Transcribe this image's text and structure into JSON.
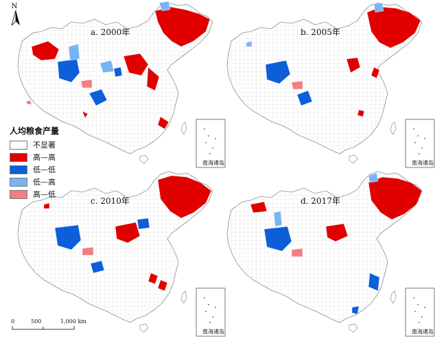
{
  "north_label": "N",
  "legend": {
    "title": "人均粮食产量",
    "items": [
      {
        "label": "不显著",
        "color": "#ffffff"
      },
      {
        "label": "高—高",
        "color": "#e00000"
      },
      {
        "label": "低—低",
        "color": "#0c5fd8"
      },
      {
        "label": "低—高",
        "color": "#78b4f4"
      },
      {
        "label": "高—低",
        "color": "#f08080"
      }
    ]
  },
  "panels": [
    {
      "title": "a. 2000年",
      "inset_label": "南海诸岛"
    },
    {
      "title": "b. 2005年",
      "inset_label": "南海诸岛"
    },
    {
      "title": "c. 2010年",
      "inset_label": "南海诸岛"
    },
    {
      "title": "d. 2017年",
      "inset_label": "南海诸岛"
    }
  ],
  "scale_bar": {
    "labels": [
      "0",
      "500",
      "1,000 km"
    ]
  },
  "colors": {
    "outline": "#8c8c8c",
    "high_high": "#e00000",
    "low_low": "#0c5fd8",
    "low_high": "#78b4f4",
    "high_low": "#f08080"
  }
}
